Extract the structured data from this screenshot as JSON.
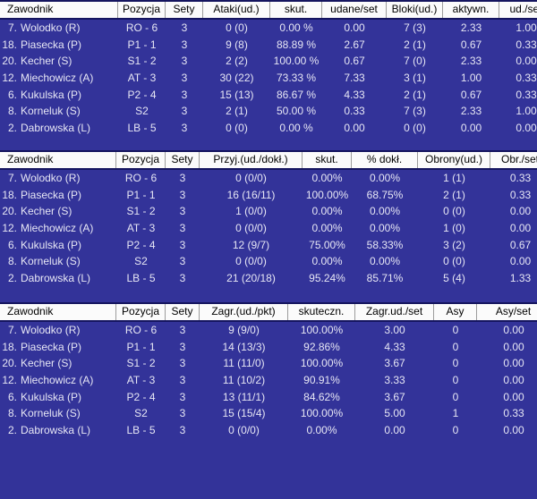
{
  "colors": {
    "row_background": "#333399",
    "row_text": "#e6e6f4",
    "header_background": "#fbfbfb",
    "header_text": "#000000",
    "header_border": "#15155f",
    "header_separator": "#9c9c9c"
  },
  "tables": [
    {
      "name": "attacks-blocks",
      "columns": [
        "Zawodnik",
        "Pozycja",
        "Sety",
        "Ataki(ud.)",
        "skut.",
        "udane/set",
        "Bloki(ud.)",
        "aktywn.",
        "ud./set"
      ],
      "players": [
        {
          "no": "7.",
          "name": "Wolodko (R)",
          "values": [
            "RO - 6",
            "3",
            "0 (0)",
            "0.00 %",
            "0.00",
            "7 (3)",
            "2.33",
            "1.00"
          ]
        },
        {
          "no": "18.",
          "name": "Piasecka (P)",
          "values": [
            "P1 - 1",
            "3",
            "9 (8)",
            "88.89 %",
            "2.67",
            "2 (1)",
            "0.67",
            "0.33"
          ]
        },
        {
          "no": "20.",
          "name": "Kecher (S)",
          "values": [
            "S1 - 2",
            "3",
            "2 (2)",
            "100.00 %",
            "0.67",
            "7 (0)",
            "2.33",
            "0.00"
          ]
        },
        {
          "no": "12.",
          "name": "Miechowicz (A)",
          "values": [
            "AT - 3",
            "3",
            "30 (22)",
            "73.33 %",
            "7.33",
            "3 (1)",
            "1.00",
            "0.33"
          ]
        },
        {
          "no": "6.",
          "name": "Kukulska (P)",
          "values": [
            "P2 - 4",
            "3",
            "15 (13)",
            "86.67 %",
            "4.33",
            "2 (1)",
            "0.67",
            "0.33"
          ]
        },
        {
          "no": "8.",
          "name": "Korneluk (S)",
          "values": [
            "S2",
            "3",
            "2 (1)",
            "50.00 %",
            "0.33",
            "7 (3)",
            "2.33",
            "1.00"
          ]
        },
        {
          "no": "2.",
          "name": "Dabrowska (L)",
          "values": [
            "LB - 5",
            "3",
            "0 (0)",
            "0.00 %",
            "0.00",
            "0 (0)",
            "0.00",
            "0.00"
          ]
        }
      ]
    },
    {
      "name": "reception-defense",
      "columns": [
        "Zawodnik",
        "Pozycja",
        "Sety",
        "Przyj.(ud./dokł.)",
        "skut.",
        "% dokł.",
        "Obrony(ud.)",
        "Obr./set"
      ],
      "players": [
        {
          "no": "7.",
          "name": "Wolodko (R)",
          "values": [
            "RO - 6",
            "3",
            "0 (0/0)",
            "0.00%",
            "0.00%",
            "1 (1)",
            "0.33"
          ]
        },
        {
          "no": "18.",
          "name": "Piasecka (P)",
          "values": [
            "P1 - 1",
            "3",
            "16 (16/11)",
            "100.00%",
            "68.75%",
            "2 (1)",
            "0.33"
          ]
        },
        {
          "no": "20.",
          "name": "Kecher (S)",
          "values": [
            "S1 - 2",
            "3",
            "1 (0/0)",
            "0.00%",
            "0.00%",
            "0 (0)",
            "0.00"
          ]
        },
        {
          "no": "12.",
          "name": "Miechowicz (A)",
          "values": [
            "AT - 3",
            "3",
            "0 (0/0)",
            "0.00%",
            "0.00%",
            "1 (0)",
            "0.00"
          ]
        },
        {
          "no": "6.",
          "name": "Kukulska (P)",
          "values": [
            "P2 - 4",
            "3",
            "12 (9/7)",
            "75.00%",
            "58.33%",
            "3 (2)",
            "0.67"
          ]
        },
        {
          "no": "8.",
          "name": "Korneluk (S)",
          "values": [
            "S2",
            "3",
            "0 (0/0)",
            "0.00%",
            "0.00%",
            "0 (0)",
            "0.00"
          ]
        },
        {
          "no": "2.",
          "name": "Dabrowska (L)",
          "values": [
            "LB - 5",
            "3",
            "21 (20/18)",
            "95.24%",
            "85.71%",
            "5 (4)",
            "1.33"
          ]
        }
      ]
    },
    {
      "name": "serve",
      "columns": [
        "Zawodnik",
        "Pozycja",
        "Sety",
        "Zagr.(ud./pkt)",
        "skuteczn.",
        "Zagr.ud./set",
        "Asy",
        "Asy/set"
      ],
      "players": [
        {
          "no": "7.",
          "name": "Wolodko (R)",
          "values": [
            "RO - 6",
            "3",
            "9 (9/0)",
            "100.00%",
            "3.00",
            "0",
            "0.00"
          ]
        },
        {
          "no": "18.",
          "name": "Piasecka (P)",
          "values": [
            "P1 - 1",
            "3",
            "14 (13/3)",
            "92.86%",
            "4.33",
            "0",
            "0.00"
          ]
        },
        {
          "no": "20.",
          "name": "Kecher (S)",
          "values": [
            "S1 - 2",
            "3",
            "11 (11/0)",
            "100.00%",
            "3.67",
            "0",
            "0.00"
          ]
        },
        {
          "no": "12.",
          "name": "Miechowicz (A)",
          "values": [
            "AT - 3",
            "3",
            "11 (10/2)",
            "90.91%",
            "3.33",
            "0",
            "0.00"
          ]
        },
        {
          "no": "6.",
          "name": "Kukulska (P)",
          "values": [
            "P2 - 4",
            "3",
            "13 (11/1)",
            "84.62%",
            "3.67",
            "0",
            "0.00"
          ]
        },
        {
          "no": "8.",
          "name": "Korneluk (S)",
          "values": [
            "S2",
            "3",
            "15 (15/4)",
            "100.00%",
            "5.00",
            "1",
            "0.33"
          ]
        },
        {
          "no": "2.",
          "name": "Dabrowska (L)",
          "values": [
            "LB - 5",
            "3",
            "0 (0/0)",
            "0.00%",
            "0.00",
            "0",
            "0.00"
          ]
        }
      ]
    }
  ]
}
